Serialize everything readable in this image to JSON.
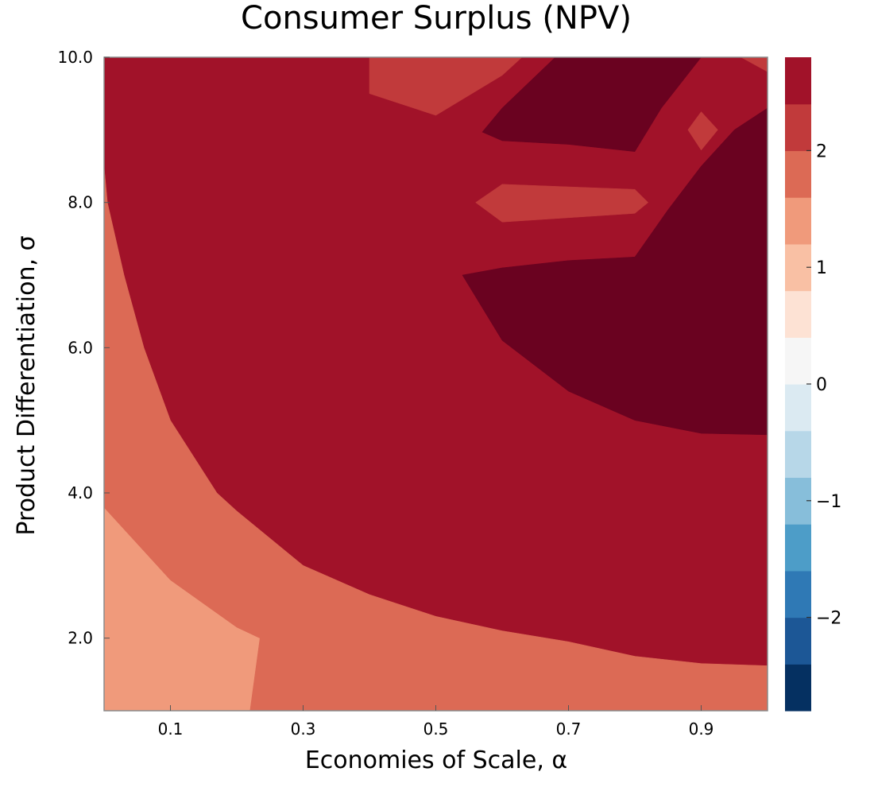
{
  "chart_data": {
    "type": "contour",
    "title": "Consumer Surplus (NPV)",
    "xlabel": "Economies of Scale, α",
    "ylabel": "Product Differentiation, σ",
    "xlim": [
      0.0,
      1.0
    ],
    "ylim": [
      1.0,
      10.0
    ],
    "x_ticks": [
      {
        "value": 0.1,
        "label": "0.1"
      },
      {
        "value": 0.3,
        "label": "0.3"
      },
      {
        "value": 0.5,
        "label": "0.5"
      },
      {
        "value": 0.7,
        "label": "0.7"
      },
      {
        "value": 0.9,
        "label": "0.9"
      }
    ],
    "y_ticks": [
      {
        "value": 2.0,
        "label": "2.0"
      },
      {
        "value": 4.0,
        "label": "4.0"
      },
      {
        "value": 6.0,
        "label": "6.0"
      },
      {
        "value": 8.0,
        "label": "8.0"
      },
      {
        "value": 10.0,
        "label": "10.0"
      }
    ],
    "grid": false,
    "colorbar": {
      "min": -2.8,
      "max": 2.8,
      "levels": [
        -2.8,
        -2.4,
        -2.0,
        -1.6,
        -1.2,
        -0.8,
        -0.4,
        0.0,
        0.4,
        0.8,
        1.2,
        1.6,
        2.0,
        2.4,
        2.8
      ],
      "colors": [
        "#053061",
        "#1c5796",
        "#2f79b5",
        "#4d9dc8",
        "#87beda",
        "#b7d7e8",
        "#dbeaf2",
        "#f6f6f6",
        "#fde2d4",
        "#f9c0a4",
        "#f09a7b",
        "#dc6a55",
        "#c13a3b",
        "#a11229",
        "#6a0220"
      ],
      "ticks": [
        {
          "value": -2,
          "label": "−2"
        },
        {
          "value": -1,
          "label": "−1"
        },
        {
          "value": 0,
          "label": "0"
        },
        {
          "value": 1,
          "label": "1"
        },
        {
          "value": 2,
          "label": "2"
        }
      ]
    },
    "regions": [
      {
        "level": "1.2–1.6",
        "color": "#f09a7b",
        "points": [
          [
            0.0,
            1.0
          ],
          [
            0.22,
            1.0
          ],
          [
            0.235,
            2.0
          ],
          [
            0.2,
            2.15
          ],
          [
            0.1,
            2.8
          ],
          [
            0.0,
            3.8
          ]
        ]
      },
      {
        "level": "1.6–2.0",
        "color": "#dc6a55",
        "points": [
          [
            0.0,
            8.5
          ],
          [
            0.005,
            8.0
          ],
          [
            0.03,
            7.0
          ],
          [
            0.06,
            6.0
          ],
          [
            0.1,
            5.0
          ],
          [
            0.17,
            4.0
          ],
          [
            0.2,
            3.75
          ],
          [
            0.3,
            3.0
          ],
          [
            0.4,
            2.6
          ],
          [
            0.5,
            2.3
          ],
          [
            0.6,
            2.1
          ],
          [
            0.7,
            1.95
          ],
          [
            0.8,
            1.75
          ],
          [
            0.9,
            1.65
          ],
          [
            1.0,
            1.62
          ],
          [
            1.0,
            1.0
          ],
          [
            0.22,
            1.0
          ],
          [
            0.235,
            2.0
          ],
          [
            0.2,
            2.15
          ],
          [
            0.1,
            2.8
          ],
          [
            0.0,
            3.8
          ]
        ]
      },
      {
        "level": "2.4–2.8",
        "color": "#6a0220",
        "points": [
          [
            0.57,
            8.97
          ],
          [
            0.6,
            9.3
          ],
          [
            0.68,
            10.0
          ],
          [
            0.9,
            10.0
          ],
          [
            0.84,
            9.3
          ],
          [
            0.8,
            8.7
          ],
          [
            0.7,
            8.8
          ],
          [
            0.6,
            8.85
          ]
        ]
      },
      {
        "level": "2.4–2.8",
        "color": "#6a0220",
        "points": [
          [
            0.54,
            7.0
          ],
          [
            0.6,
            7.1
          ],
          [
            0.7,
            7.2
          ],
          [
            0.8,
            7.25
          ],
          [
            0.85,
            7.9
          ],
          [
            0.9,
            8.5
          ],
          [
            0.95,
            9.0
          ],
          [
            1.0,
            9.3
          ],
          [
            1.0,
            4.8
          ],
          [
            0.9,
            4.82
          ],
          [
            0.8,
            5.0
          ],
          [
            0.7,
            5.4
          ],
          [
            0.6,
            6.1
          ]
        ]
      },
      {
        "level": "2.0–2.4",
        "color": "#c13a3b",
        "points": [
          [
            0.4,
            9.5
          ],
          [
            0.5,
            9.2
          ],
          [
            0.6,
            9.75
          ],
          [
            0.63,
            10.0
          ],
          [
            0.4,
            10.0
          ]
        ]
      },
      {
        "level": "2.0–2.4",
        "color": "#c13a3b",
        "points": [
          [
            0.56,
            8.0
          ],
          [
            0.6,
            8.25
          ],
          [
            0.8,
            8.18
          ],
          [
            0.82,
            8.0
          ],
          [
            0.8,
            7.85
          ],
          [
            0.6,
            7.73
          ]
        ]
      },
      {
        "level": "2.0–2.4",
        "color": "#c13a3b",
        "points": [
          [
            0.88,
            9.0
          ],
          [
            0.9,
            9.25
          ],
          [
            0.925,
            9.0
          ],
          [
            0.9,
            8.72
          ]
        ]
      },
      {
        "level": "2.0–2.4",
        "color": "#c13a3b",
        "points": [
          [
            0.96,
            10.0
          ],
          [
            1.0,
            10.0
          ],
          [
            1.0,
            9.8
          ]
        ]
      }
    ]
  }
}
